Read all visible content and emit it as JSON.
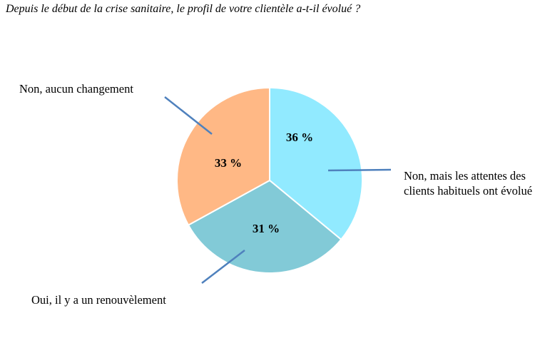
{
  "chart_data": {
    "type": "pie",
    "title": "Depuis le début de la crise sanitaire, le profil de votre clientèle a-t-il évolué ?",
    "slices": [
      {
        "label": "Non, mais les attentes des clients habituels ont évolué",
        "value": 36,
        "value_label": "36 %",
        "color": "#91EAFF"
      },
      {
        "label": "Oui, il y a un renouvèlement",
        "value": 31,
        "value_label": "31 %",
        "color": "#82CAD7"
      },
      {
        "label": "Non, aucun changement",
        "value": 33,
        "value_label": "33 %",
        "color": "#FFB885"
      }
    ],
    "start": "12 o'clock",
    "direction": "clockwise",
    "leader_line_color": "#4F81BD"
  }
}
